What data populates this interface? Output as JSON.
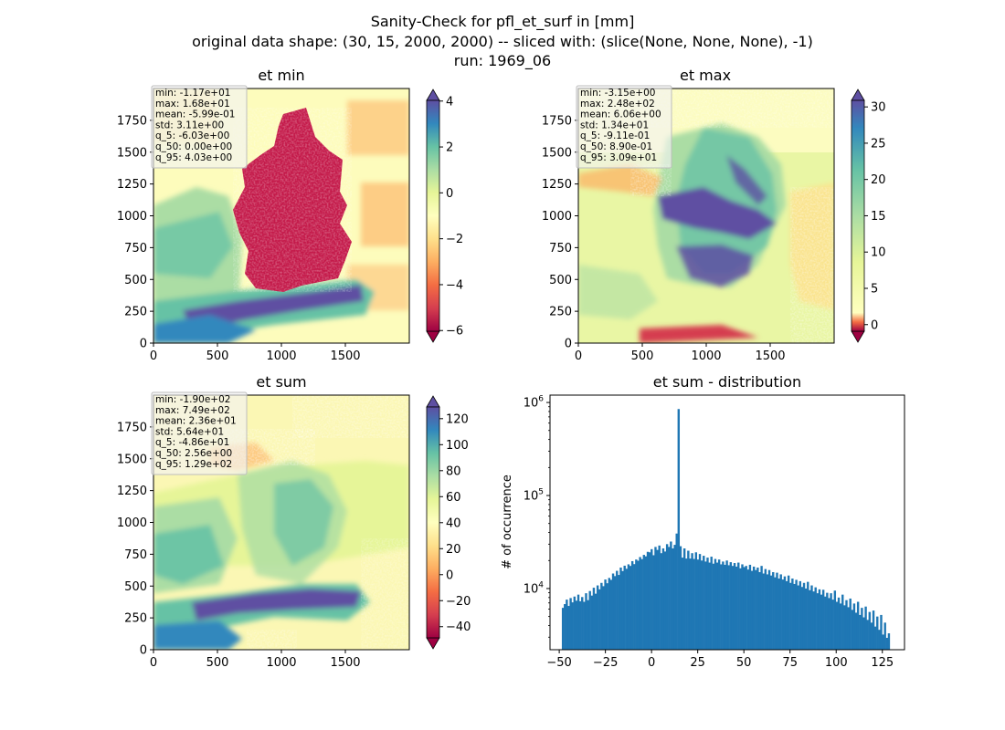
{
  "figure": {
    "title_lines": [
      "Sanity-Check for pfl_et_surf in [mm]",
      "original data shape: (30, 15, 2000, 2000) -- sliced with: (slice(None, None, None), -1)",
      "run: 1969_06"
    ]
  },
  "colors": {
    "spectral": [
      "#9e0142",
      "#d53e4f",
      "#f46d43",
      "#fdae61",
      "#fee08b",
      "#ffffbf",
      "#e6f598",
      "#abdda4",
      "#66c2a5",
      "#3288bd",
      "#5e4fa2"
    ],
    "hist_bar": "#1f77b4"
  },
  "map_axes": {
    "xticks": [
      "0",
      "500",
      "1000",
      "1500"
    ],
    "yticks": [
      "0",
      "250",
      "500",
      "750",
      "1000",
      "1250",
      "1500",
      "1750"
    ]
  },
  "maps": [
    {
      "title": "et min",
      "stats": [
        "min: -1.17e+01",
        "max: 1.68e+01",
        "mean: -5.99e-01",
        "std: 3.11e+00",
        "q_5: -6.03e+00",
        "q_50: 0.00e+00",
        "q_95: 4.03e+00"
      ],
      "colorbar": {
        "vmin": -6.03,
        "vmax": 4.03,
        "ticks": [
          -6,
          -4,
          -2,
          0,
          2,
          4
        ]
      }
    },
    {
      "title": "et max",
      "stats": [
        "min: -3.15e+00",
        "max: 2.48e+02",
        "mean: 6.06e+00",
        "std: 1.34e+01",
        "q_5: -9.11e-01",
        "q_50: 8.90e-01",
        "q_95: 3.09e+01"
      ],
      "colorbar": {
        "vmin": -0.911,
        "vmax": 30.9,
        "ticks": [
          0,
          5,
          10,
          15,
          20,
          25,
          30
        ]
      }
    },
    {
      "title": "et sum",
      "stats": [
        "min: -1.90e+02",
        "max: 7.49e+02",
        "mean: 2.36e+01",
        "std: 5.64e+01",
        "q_5: -4.86e+01",
        "q_50: 2.56e+00",
        "q_95: 1.29e+02"
      ],
      "colorbar": {
        "vmin": -48.6,
        "vmax": 129,
        "ticks": [
          -40,
          -20,
          0,
          20,
          40,
          60,
          80,
          100,
          120
        ]
      }
    }
  ],
  "chart_data": {
    "type": "bar",
    "title": "et sum - distribution",
    "xlabel": "",
    "ylabel": "# of occurrence",
    "yscale": "log",
    "xlim": [
      -55,
      137
    ],
    "ylim": [
      2200,
      1200000
    ],
    "xticks": [
      -50,
      -25,
      0,
      25,
      50,
      75,
      100,
      125
    ],
    "yticks": [
      {
        "value": 10000,
        "label": "10^4"
      },
      {
        "value": 100000,
        "label": "10^5"
      },
      {
        "value": 1000000,
        "label": "10^6"
      }
    ],
    "bin_range": [
      -48.6,
      129
    ],
    "counts": [
      6200,
      6800,
      7600,
      6500,
      7900,
      7100,
      8200,
      7400,
      8600,
      7300,
      8100,
      7200,
      8900,
      7500,
      9400,
      8400,
      10200,
      8800,
      10800,
      9800,
      11500,
      10600,
      12500,
      11400,
      13000,
      12400,
      14500,
      13600,
      15500,
      14000,
      16800,
      15400,
      17600,
      16300,
      18200,
      17500,
      19700,
      18300,
      20500,
      19900,
      21800,
      20700,
      23000,
      22200,
      24800,
      24500,
      26500,
      22800,
      28000,
      26000,
      29000,
      24000,
      27000,
      25000,
      30000,
      28000,
      32000,
      27000,
      29500,
      39000,
      850000,
      28500,
      21500,
      27000,
      21000,
      25500,
      21000,
      24000,
      20800,
      24500,
      20500,
      23500,
      20000,
      22500,
      19500,
      21500,
      19000,
      22000,
      18500,
      20800,
      19000,
      20500,
      18200,
      19500,
      18000,
      20000,
      17800,
      19200,
      17500,
      18800,
      17200,
      19000,
      16500,
      18200,
      17000,
      17500,
      16000,
      18000,
      15500,
      17200,
      15800,
      16800,
      15000,
      17500,
      14500,
      16200,
      14200,
      15800,
      13800,
      15000,
      13200,
      14800,
      12800,
      14200,
      12500,
      13500,
      12000,
      13800,
      11500,
      12800,
      11200,
      12400,
      10800,
      12000,
      10400,
      11500,
      10000,
      11800,
      9600,
      10800,
      9300,
      10300,
      8900,
      9800,
      8600,
      9700,
      8200,
      9000,
      7900,
      8900,
      7600,
      9500,
      7200,
      8000,
      6900,
      8600,
      6600,
      7500,
      6300,
      7800,
      5900,
      6900,
      5500,
      7200,
      5200,
      6200,
      4900,
      6400,
      4600,
      5600,
      4300,
      5800,
      3900,
      5000,
      3600,
      5200,
      3200,
      4300,
      2950,
      3300
    ]
  }
}
